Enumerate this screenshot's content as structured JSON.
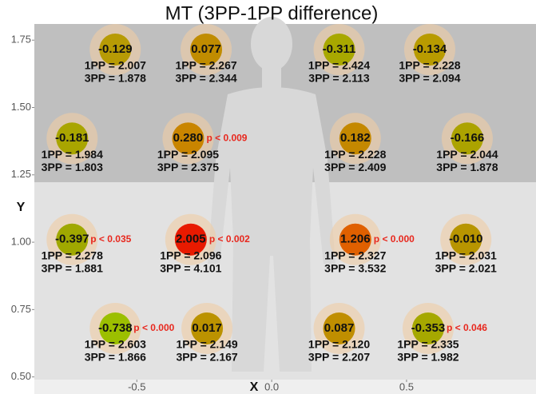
{
  "chart_data": {
    "type": "scatter",
    "title": "MT (3PP-1PP difference)",
    "x_label": "X",
    "y_label": "Y",
    "xlim": [
      -0.88,
      0.98
    ],
    "ylim": [
      0.49,
      1.81
    ],
    "xticks": [
      {
        "value": -0.5,
        "label": "-0.5"
      },
      {
        "value": 0,
        "label": "0.0"
      },
      {
        "value": 0.5,
        "label": "0.5"
      }
    ],
    "yticks": [
      {
        "value": 0.5,
        "label": "0.50"
      },
      {
        "value": 0.75,
        "label": "0.75"
      },
      {
        "value": 1,
        "label": "1.00"
      },
      {
        "value": 1.25,
        "label": "1.25"
      },
      {
        "value": 1.5,
        "label": "1.50"
      },
      {
        "value": 1.75,
        "label": "1.75"
      }
    ],
    "series": [
      {
        "x": [
          -0.58,
          -0.243,
          0.25,
          0.586,
          -0.74,
          -0.31,
          0.31,
          0.725,
          -0.74,
          -0.3,
          0.31,
          0.72,
          -0.58,
          -0.24,
          0.25,
          0.58
        ],
        "y": [
          1.715,
          1.715,
          1.715,
          1.715,
          1.385,
          1.385,
          1.385,
          1.385,
          1.01,
          1.01,
          1.01,
          1.01,
          0.68,
          0.68,
          0.68,
          0.68
        ],
        "values": [
          -0.129,
          0.077,
          -0.311,
          -0.134,
          -0.181,
          0.28,
          0.182,
          -0.166,
          -0.397,
          2.005,
          1.206,
          -0.01,
          -0.738,
          0.017,
          0.087,
          -0.353
        ],
        "value_labels": [
          "-0.129",
          "0.077",
          "-0.311",
          "-0.134",
          "-0.181",
          "0.280",
          "0.182",
          "-0.166",
          "-0.397",
          "2.005",
          "1.206",
          "-0.010",
          "-0.738",
          "0.017",
          "0.087",
          "-0.353"
        ],
        "colors": [
          "#b79b05",
          "#c08c00",
          "#a8a800",
          "#b89b00",
          "#a9a500",
          "#c98500",
          "#c48800",
          "#aca300",
          "#a0a800",
          "#e81a00",
          "#e06000",
          "#b89500",
          "#9cbf00",
          "#bb9200",
          "#c08e00",
          "#a6a800"
        ],
        "pp1_labels": [
          "1PP = 2.007",
          "1PP = 2.267",
          "1PP = 2.424",
          "1PP = 2.228",
          "1PP = 1.984",
          "1PP = 2.095",
          "1PP = 2.228",
          "1PP = 2.044",
          "1PP = 2.278",
          "1PP = 2.096",
          "1PP = 2.327",
          "1PP = 2.031",
          "1PP = 2.603",
          "1PP = 2.149",
          "1PP = 2.120",
          "1PP = 2.335"
        ],
        "pp3_labels": [
          "3PP = 1.878",
          "3PP = 2.344",
          "3PP = 2.113",
          "3PP = 2.094",
          "3PP = 1.803",
          "3PP = 2.375",
          "3PP = 2.409",
          "3PP = 1.878",
          "3PP = 1.881",
          "3PP = 4.101",
          "3PP = 3.532",
          "3PP = 2.021",
          "3PP = 1.866",
          "3PP = 2.167",
          "3PP = 2.207",
          "3PP = 1.982"
        ],
        "p_labels": [
          null,
          null,
          null,
          null,
          null,
          "p < 0.009",
          null,
          null,
          "p < 0.035",
          "p < 0.002",
          "p < 0.000",
          null,
          "p < 0.000",
          null,
          null,
          "p < 0.046"
        ]
      }
    ]
  }
}
